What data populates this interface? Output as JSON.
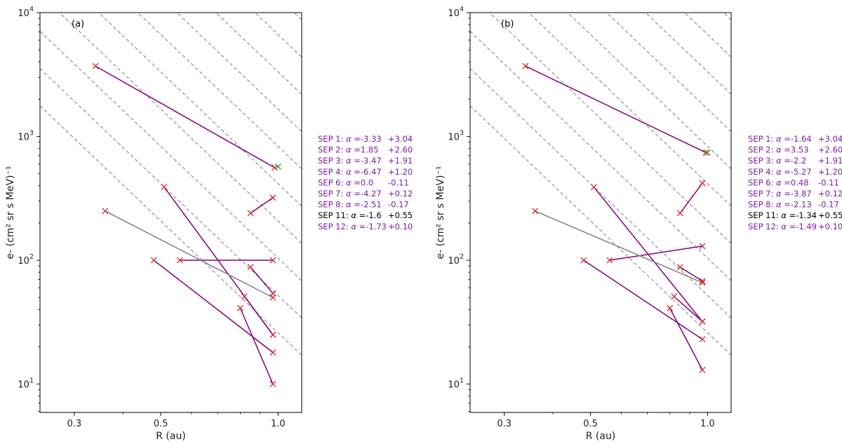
{
  "chart_data": [
    {
      "type": "line",
      "panel_label": "(a)",
      "xlabel": "R (au)",
      "ylabel": "e- (cm² sr s MeV)⁻¹",
      "xscale": "log",
      "yscale": "log",
      "xlim": [
        0.245,
        1.15
      ],
      "ylim": [
        5.9,
        10000
      ],
      "xticks": [
        {
          "value": 0.3,
          "label": "0.3"
        },
        {
          "value": 0.5,
          "label": "0.5"
        },
        {
          "value": 1.0,
          "label": "1.0"
        }
      ],
      "yticks": [
        {
          "value": 10,
          "base": "10",
          "exp": "1"
        },
        {
          "value": 100,
          "base": "10",
          "exp": "2"
        },
        {
          "value": 1000,
          "base": "10",
          "exp": "3"
        },
        {
          "value": 10000,
          "base": "10",
          "exp": "4"
        }
      ],
      "reference_lines": {
        "slope": -3,
        "style": "dashed",
        "color": "#888888",
        "anchors": [
          26,
          52,
          104,
          208,
          416,
          832,
          1664,
          3328,
          6656,
          13312
        ]
      },
      "series": [
        {
          "name": "SEP 1",
          "color": "#800080",
          "x": [
            0.34,
            0.98
          ],
          "y": [
            3700,
            560
          ]
        },
        {
          "name": "SEP 2",
          "color": "#800080",
          "x": [
            0.85,
            0.97
          ],
          "y": [
            240,
            320
          ]
        },
        {
          "name": "SEP 3",
          "color": "#800080",
          "x": [
            0.51,
            0.97
          ],
          "y": [
            390,
            25
          ]
        },
        {
          "name": "SEP 4",
          "color": "#800080",
          "x": [
            0.8,
            0.97
          ],
          "y": [
            41,
            10
          ]
        },
        {
          "name": "SEP 6",
          "color": "#800080",
          "x": [
            0.56,
            0.97
          ],
          "y": [
            100,
            100
          ]
        },
        {
          "name": "SEP 7",
          "color": "#800080",
          "x": [
            0.48,
            0.97
          ],
          "y": [
            100,
            18
          ]
        },
        {
          "name": "SEP 8",
          "color": "#800080",
          "x": [
            0.85,
            0.97
          ],
          "y": [
            88,
            54
          ]
        },
        {
          "name": "SEP 11",
          "color": "#808080",
          "x": [
            0.36,
            0.97
          ],
          "y": [
            250,
            50
          ]
        },
        {
          "name": "SEP 12",
          "color": "#800080",
          "x": [
            0.82,
            0.97
          ],
          "y": [
            51,
            25
          ]
        }
      ],
      "green_marker": {
        "x": 1.0,
        "y": 570
      },
      "legend": [
        {
          "label": "SEP 1:",
          "alpha": "-3.33",
          "offset": "+3.04",
          "color": "#7a1fa0"
        },
        {
          "label": "SEP 2:",
          "alpha": "1.85",
          "offset": "+2.60",
          "color": "#7a1fa0"
        },
        {
          "label": "SEP 3:",
          "alpha": "-3.47",
          "offset": "+1.91",
          "color": "#7a1fa0"
        },
        {
          "label": "SEP 4:",
          "alpha": "-6.47",
          "offset": "+1.20",
          "color": "#7a1fa0"
        },
        {
          "label": "SEP 6:",
          "alpha": "0.0",
          "offset": "-0.11",
          "color": "#7a1fa0"
        },
        {
          "label": "SEP 7:",
          "alpha": "-4.27",
          "offset": "+0.12",
          "color": "#7a1fa0"
        },
        {
          "label": "SEP 8:",
          "alpha": "-2.51",
          "offset": "-0.17",
          "color": "#7a1fa0"
        },
        {
          "label": "SEP 11:",
          "alpha": "-1.6",
          "offset": "+0.55",
          "color": "#000000"
        },
        {
          "label": "SEP 12:",
          "alpha": "-1.73",
          "offset": "+0.10",
          "color": "#7a1fa0"
        }
      ]
    },
    {
      "type": "line",
      "panel_label": "(b)",
      "xlabel": "R (au)",
      "ylabel": "e- (cm² sr s MeV)⁻¹",
      "xscale": "log",
      "yscale": "log",
      "xlim": [
        0.245,
        1.15
      ],
      "ylim": [
        5.9,
        10000
      ],
      "xticks": [
        {
          "value": 0.3,
          "label": "0.3"
        },
        {
          "value": 0.5,
          "label": "0.5"
        },
        {
          "value": 1.0,
          "label": "1.0"
        }
      ],
      "yticks": [
        {
          "value": 10,
          "base": "10",
          "exp": "1"
        },
        {
          "value": 100,
          "base": "10",
          "exp": "2"
        },
        {
          "value": 1000,
          "base": "10",
          "exp": "3"
        },
        {
          "value": 10000,
          "base": "10",
          "exp": "4"
        }
      ],
      "reference_lines": {
        "slope": -3,
        "style": "dashed",
        "color": "#888888",
        "anchors": [
          26,
          52,
          104,
          208,
          416,
          832,
          1664,
          3328,
          6656,
          13312
        ]
      },
      "series": [
        {
          "name": "SEP 1",
          "color": "#800080",
          "x": [
            0.34,
            0.99
          ],
          "y": [
            3700,
            740
          ]
        },
        {
          "name": "SEP 2",
          "color": "#800080",
          "x": [
            0.85,
            0.97
          ],
          "y": [
            240,
            420
          ]
        },
        {
          "name": "SEP 3",
          "color": "#800080",
          "x": [
            0.51,
            0.97
          ],
          "y": [
            390,
            32
          ]
        },
        {
          "name": "SEP 4",
          "color": "#800080",
          "x": [
            0.8,
            0.97
          ],
          "y": [
            41,
            13
          ]
        },
        {
          "name": "SEP 6",
          "color": "#800080",
          "x": [
            0.56,
            0.97
          ],
          "y": [
            100,
            130
          ]
        },
        {
          "name": "SEP 7",
          "color": "#800080",
          "x": [
            0.48,
            0.97
          ],
          "y": [
            100,
            23
          ]
        },
        {
          "name": "SEP 8",
          "color": "#800080",
          "x": [
            0.85,
            0.97
          ],
          "y": [
            88,
            68
          ]
        },
        {
          "name": "SEP 11",
          "color": "#808080",
          "x": [
            0.36,
            0.97
          ],
          "y": [
            250,
            66
          ]
        },
        {
          "name": "SEP 12",
          "color": "#800080",
          "x": [
            0.82,
            0.97
          ],
          "y": [
            51,
            32
          ]
        }
      ],
      "green_marker": {
        "x": 1.0,
        "y": 740
      },
      "legend": [
        {
          "label": "SEP 1:",
          "alpha": "-1.64",
          "offset": "+3.04",
          "color": "#7a1fa0"
        },
        {
          "label": "SEP 2:",
          "alpha": "3.53",
          "offset": "+2.60",
          "color": "#7a1fa0"
        },
        {
          "label": "SEP 3:",
          "alpha": "-2.2",
          "offset": "+1.91",
          "color": "#7a1fa0"
        },
        {
          "label": "SEP 4:",
          "alpha": "-5.27",
          "offset": "+1.20",
          "color": "#7a1fa0"
        },
        {
          "label": "SEP 6:",
          "alpha": "0.48",
          "offset": "-0.11",
          "color": "#7a1fa0"
        },
        {
          "label": "SEP 7:",
          "alpha": "-3.87",
          "offset": "+0.12",
          "color": "#7a1fa0"
        },
        {
          "label": "SEP 8:",
          "alpha": "-2.13",
          "offset": "-0.17",
          "color": "#7a1fa0"
        },
        {
          "label": "SEP 11:",
          "alpha": "-1.34",
          "offset": "+0.55",
          "color": "#000000"
        },
        {
          "label": "SEP 12:",
          "alpha": "-1.49",
          "offset": "+0.10",
          "color": "#7a1fa0"
        }
      ]
    }
  ],
  "colors": {
    "marker_red": "#d62728",
    "marker_green": "#2ca02c"
  }
}
